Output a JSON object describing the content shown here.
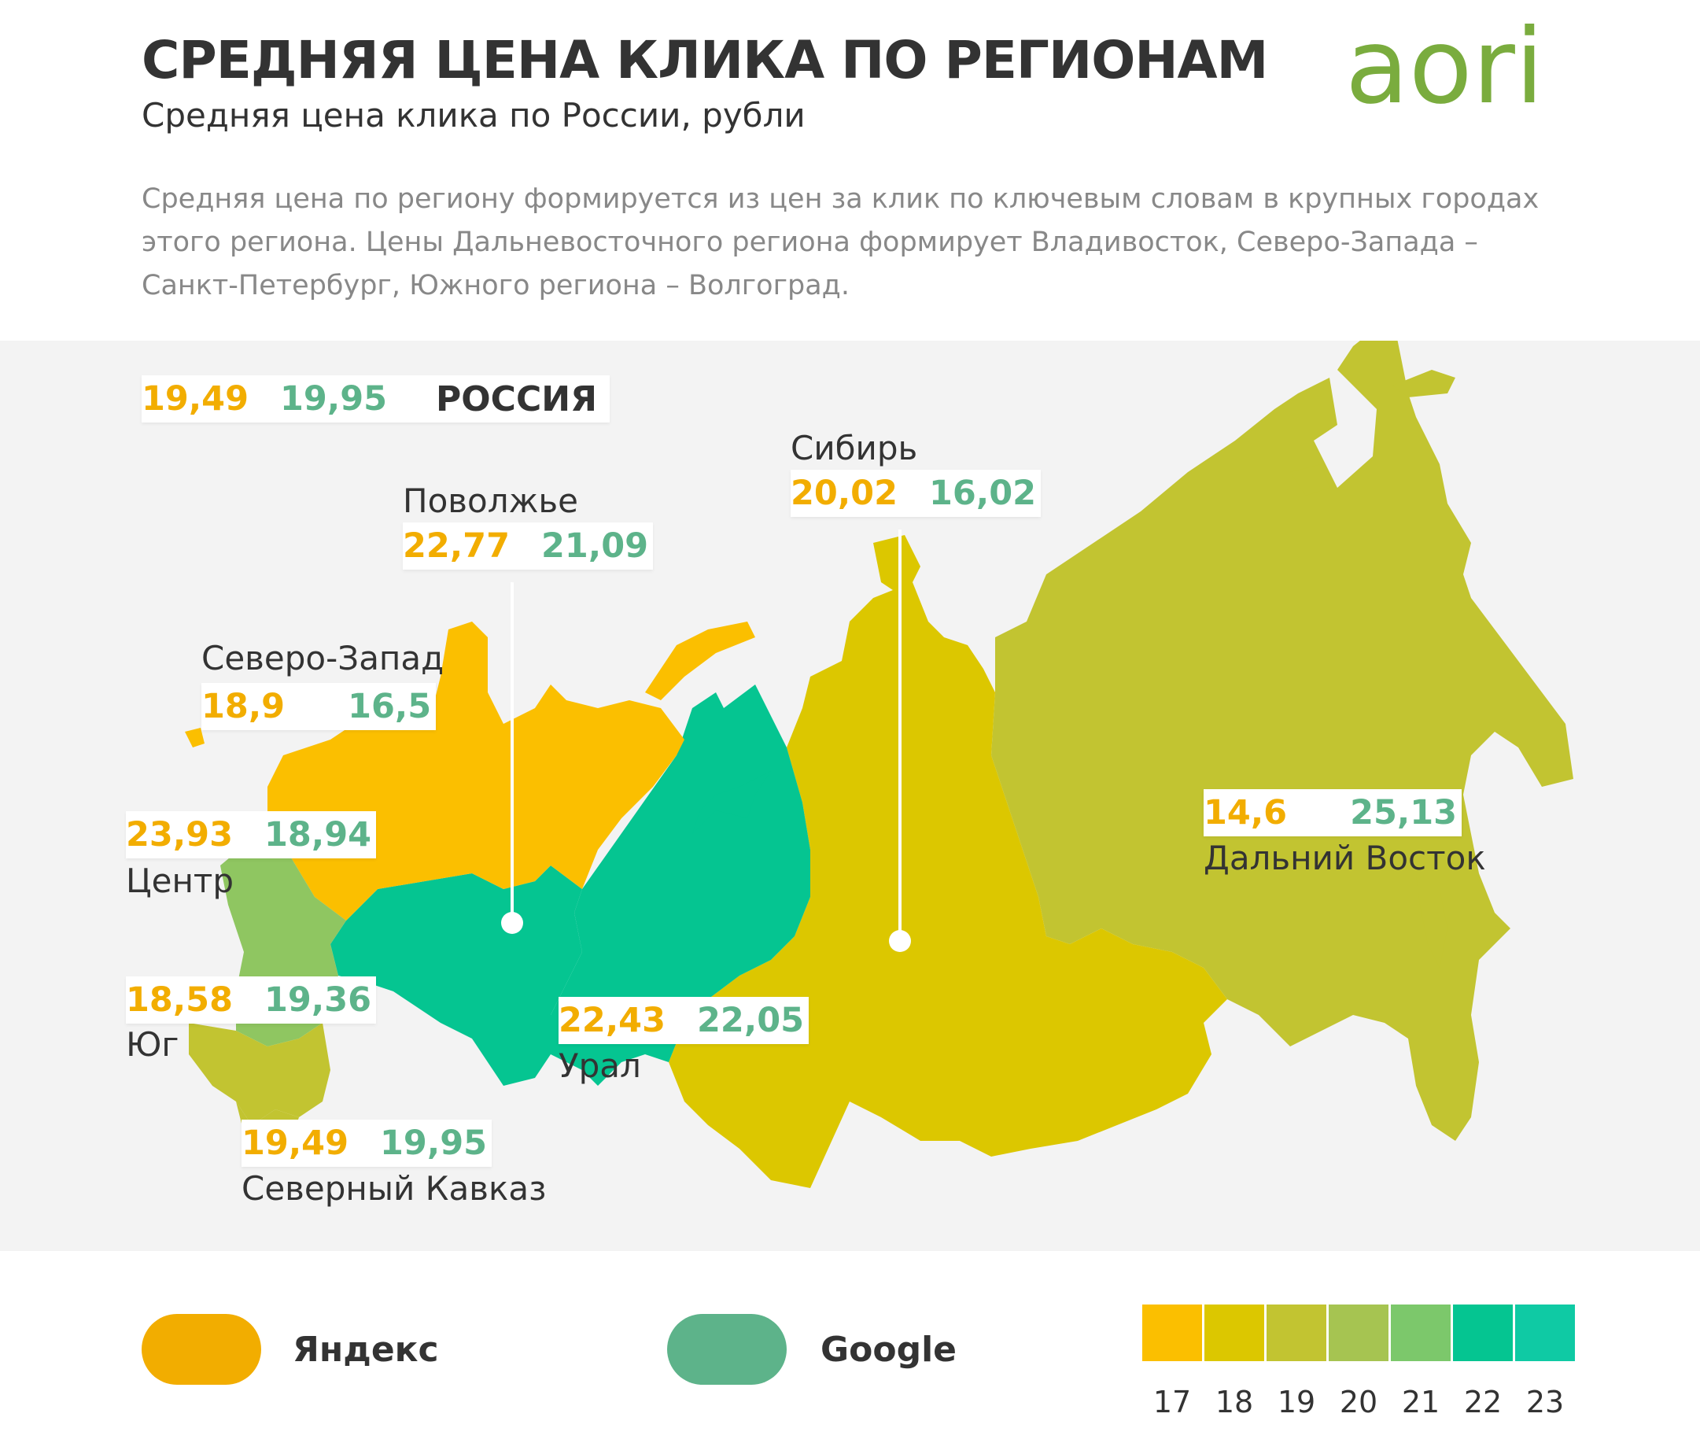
{
  "header": {
    "title": "СРЕДНЯЯ ЦЕНА КЛИКА ПО РЕГИОНАМ",
    "subtitle": "Средняя цена клика по России, рубли",
    "description": "Средняя цена по региону формируется из цен за клик по ключевым словам в крупных городах этого региона. Цены Дальневосточного региона формирует Владивосток, Северо-Запада – Санкт-Петербург, Южного региона – Волгоград."
  },
  "logo": {
    "text": "aori",
    "color": "#7aac3e"
  },
  "colors": {
    "yandex": "#f2ad00",
    "google": "#5db38a",
    "background": "#f3f3f3"
  },
  "russia": {
    "name": "РОССИЯ",
    "yandex": "19,49",
    "google": "19,95"
  },
  "regions": [
    {
      "id": "volga",
      "name": "Поволжье",
      "yandex": "22,77",
      "google": "21,09",
      "fill": "#05c591"
    },
    {
      "id": "siberia",
      "name": "Сибирь",
      "yandex": "20,02",
      "google": "16,02",
      "fill": "#dcc700"
    },
    {
      "id": "northwest",
      "name": "Северо-Запад",
      "yandex": "18,9",
      "google": "16,5",
      "fill": "#fbbf00"
    },
    {
      "id": "center",
      "name": "Центр",
      "yandex": "23,93",
      "google": "18,94",
      "fill": "#8fc661"
    },
    {
      "id": "south",
      "name": "Юг",
      "yandex": "18,58",
      "google": "19,36",
      "fill": "#c2c431"
    },
    {
      "id": "caucasus",
      "name": "Северный Кавказ",
      "yandex": "19,49",
      "google": "19,95",
      "fill": "#c2c431"
    },
    {
      "id": "ural",
      "name": "Урал",
      "yandex": "22,43",
      "google": "22,05",
      "fill": "#05c591"
    },
    {
      "id": "fareast",
      "name": "Дальний Восток",
      "yandex": "14,6",
      "google": "25,13",
      "fill": "#c2c431"
    }
  ],
  "legend": {
    "yandex_label": "Яндекс",
    "google_label": "Google",
    "scale": [
      {
        "value": "17",
        "color": "#fbbf00"
      },
      {
        "value": "18",
        "color": "#dcc700"
      },
      {
        "value": "19",
        "color": "#c2c431"
      },
      {
        "value": "20",
        "color": "#a6c451"
      },
      {
        "value": "21",
        "color": "#7cc86b"
      },
      {
        "value": "22",
        "color": "#05c591"
      },
      {
        "value": "23",
        "color": "#0fcaa4"
      }
    ]
  }
}
